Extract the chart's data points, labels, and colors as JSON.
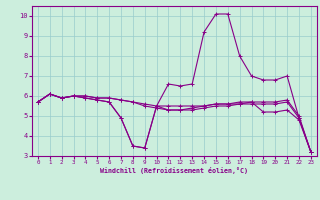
{
  "xlabel": "Windchill (Refroidissement éolien,°C)",
  "bg_color": "#cceedd",
  "line_color": "#880088",
  "grid_color": "#99cccc",
  "xlim": [
    -0.5,
    23.5
  ],
  "ylim": [
    3,
    10.5
  ],
  "xticks": [
    0,
    1,
    2,
    3,
    4,
    5,
    6,
    7,
    8,
    9,
    10,
    11,
    12,
    13,
    14,
    15,
    16,
    17,
    18,
    19,
    20,
    21,
    22,
    23
  ],
  "yticks": [
    3,
    4,
    5,
    6,
    7,
    8,
    9,
    10
  ],
  "lines": [
    {
      "x": [
        0,
        1,
        2,
        3,
        4,
        5,
        6,
        7,
        8,
        9,
        10,
        11,
        12,
        13,
        14,
        15,
        16,
        17,
        18,
        19,
        20,
        21,
        22,
        23
      ],
      "y": [
        5.7,
        6.1,
        5.9,
        6.0,
        5.9,
        5.8,
        5.7,
        4.9,
        3.5,
        3.4,
        5.5,
        6.6,
        6.5,
        6.6,
        9.2,
        10.1,
        10.1,
        8.0,
        7.0,
        6.8,
        6.8,
        7.0,
        4.9,
        3.2
      ]
    },
    {
      "x": [
        0,
        1,
        2,
        3,
        4,
        5,
        6,
        7,
        8,
        9,
        10,
        11,
        12,
        13,
        14,
        15,
        16,
        17,
        18,
        19,
        20,
        21,
        22,
        23
      ],
      "y": [
        5.7,
        6.1,
        5.9,
        6.0,
        5.9,
        5.8,
        5.7,
        4.9,
        3.5,
        3.4,
        5.5,
        5.3,
        5.3,
        5.4,
        5.5,
        5.6,
        5.6,
        5.6,
        5.7,
        5.2,
        5.2,
        5.3,
        4.8,
        3.2
      ]
    },
    {
      "x": [
        0,
        1,
        2,
        3,
        4,
        5,
        6,
        7,
        8,
        9,
        10,
        11,
        12,
        13,
        14,
        15,
        16,
        17,
        18,
        19,
        20,
        21,
        22,
        23
      ],
      "y": [
        5.7,
        6.1,
        5.9,
        6.0,
        6.0,
        5.9,
        5.9,
        5.8,
        5.7,
        5.6,
        5.5,
        5.5,
        5.5,
        5.5,
        5.5,
        5.6,
        5.6,
        5.7,
        5.7,
        5.7,
        5.7,
        5.8,
        5.0,
        3.2
      ]
    },
    {
      "x": [
        0,
        1,
        2,
        3,
        4,
        5,
        6,
        7,
        8,
        9,
        10,
        11,
        12,
        13,
        14,
        15,
        16,
        17,
        18,
        19,
        20,
        21,
        22,
        23
      ],
      "y": [
        5.7,
        6.1,
        5.9,
        6.0,
        6.0,
        5.9,
        5.9,
        5.8,
        5.7,
        5.5,
        5.4,
        5.3,
        5.3,
        5.3,
        5.4,
        5.5,
        5.5,
        5.6,
        5.6,
        5.6,
        5.6,
        5.7,
        4.9,
        3.2
      ]
    }
  ]
}
